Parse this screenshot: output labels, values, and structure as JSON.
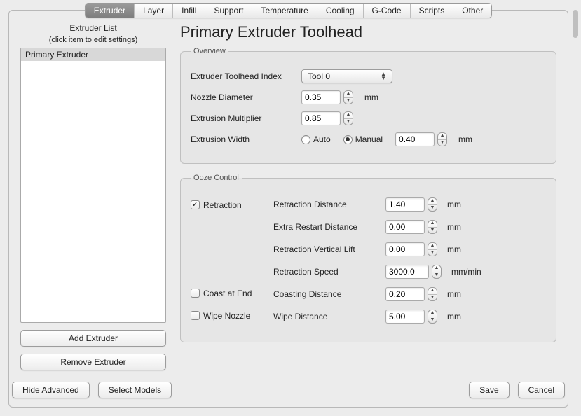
{
  "tabs": [
    "Extruder",
    "Layer",
    "Infill",
    "Support",
    "Temperature",
    "Cooling",
    "G-Code",
    "Scripts",
    "Other"
  ],
  "selected_tab_index": 0,
  "left": {
    "title": "Extruder List",
    "subtitle": "(click item to edit settings)",
    "items": [
      "Primary Extruder"
    ],
    "selected_index": 0,
    "add_button": "Add Extruder",
    "remove_button": "Remove Extruder"
  },
  "heading": "Primary Extruder Toolhead",
  "overview": {
    "legend": "Overview",
    "toolhead_label": "Extruder Toolhead Index",
    "toolhead_value": "Tool 0",
    "nozzle_label": "Nozzle Diameter",
    "nozzle_value": "0.35",
    "nozzle_unit": "mm",
    "multiplier_label": "Extrusion Multiplier",
    "multiplier_value": "0.85",
    "width_label": "Extrusion Width",
    "width_auto_label": "Auto",
    "width_manual_label": "Manual",
    "width_mode": "manual",
    "width_value": "0.40",
    "width_unit": "mm"
  },
  "ooze": {
    "legend": "Ooze Control",
    "retraction_checked": true,
    "retraction_label": "Retraction",
    "coast_checked": false,
    "coast_label": "Coast at End",
    "wipe_checked": false,
    "wipe_label": "Wipe Nozzle",
    "rows": {
      "retraction_distance": {
        "label": "Retraction Distance",
        "value": "1.40",
        "unit": "mm"
      },
      "extra_restart": {
        "label": "Extra Restart Distance",
        "value": "0.00",
        "unit": "mm"
      },
      "vertical_lift": {
        "label": "Retraction Vertical Lift",
        "value": "0.00",
        "unit": "mm"
      },
      "retraction_speed": {
        "label": "Retraction Speed",
        "value": "3000.0",
        "unit": "mm/min"
      },
      "coasting_distance": {
        "label": "Coasting Distance",
        "value": "0.20",
        "unit": "mm"
      },
      "wipe_distance": {
        "label": "Wipe Distance",
        "value": "5.00",
        "unit": "mm"
      }
    }
  },
  "footer": {
    "hide_advanced": "Hide Advanced",
    "select_models": "Select Models",
    "save": "Save",
    "cancel": "Cancel"
  },
  "colors": {
    "background": "#ececec",
    "panel_bg": "#e6e6e6",
    "border": "#9c9c9c",
    "tab_selected_bg": "#8a8a8a",
    "text": "#222222"
  }
}
